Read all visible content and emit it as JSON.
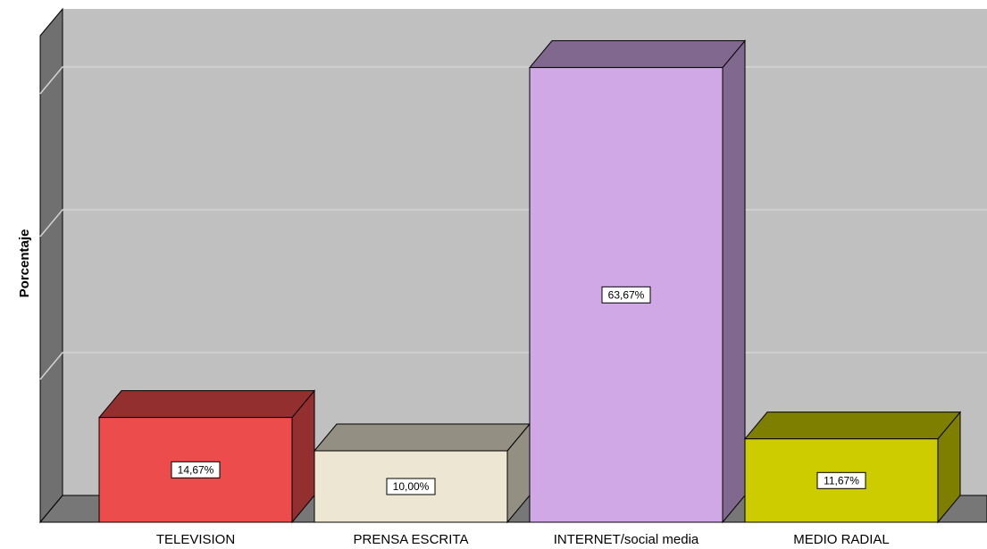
{
  "chart_data": {
    "type": "bar3d",
    "y_label": "Porcentaje",
    "categories": [
      "TELEVISION",
      "PRENSA ESCRITA",
      "INTERNET/social media",
      "MEDIO RADIAL"
    ],
    "values": [
      14.67,
      10.0,
      63.67,
      11.67
    ],
    "value_labels": [
      "14,67%",
      "10,00%",
      "63,67%",
      "11,67%"
    ],
    "colors": [
      "#ed4c4c",
      "#ede6d2",
      "#d0a8e6",
      "#cccc00"
    ],
    "ylim": [
      0,
      68
    ],
    "yticks": [
      0,
      20,
      40,
      60
    ],
    "grid": true
  }
}
